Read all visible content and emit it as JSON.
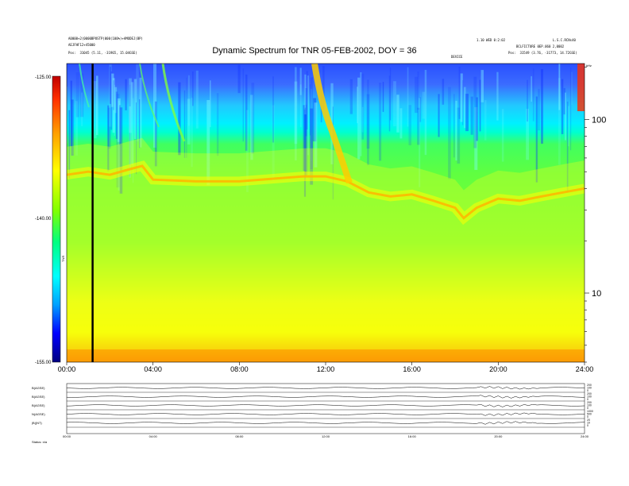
{
  "chart_data": {
    "type": "heatmap",
    "title": "Dynamic Spectrum for TNR 05-FEB-2002, DOY = 36",
    "colorbar": {
      "ticks": [
        "-125.00",
        "-140.00",
        "-155.00"
      ],
      "label": "TNR",
      "range": [
        -155,
        -125
      ],
      "colors": [
        "#000080",
        "#0000ff",
        "#00a0ff",
        "#00ffff",
        "#00ff80",
        "#80ff00",
        "#ffff00",
        "#ffa000",
        "#ff3000",
        "#c00000"
      ]
    },
    "x_ticks": [
      "00:00",
      "04:00",
      "08:00",
      "12:00",
      "16:00",
      "20:00",
      "24:00"
    ],
    "xlim_hours": [
      0,
      24
    ],
    "y_ticks": [
      "100",
      "10"
    ],
    "y_tick_values_khz": [
      100,
      10
    ],
    "ylim_khz": [
      4,
      210
    ],
    "y_scale": "log",
    "y_unit": "kHz",
    "marker_time_hours": 1.2,
    "emission_band": {
      "hours": [
        0,
        1,
        2,
        3,
        3.5,
        4,
        6,
        8,
        10,
        11,
        12,
        13,
        14,
        15,
        16,
        17,
        18,
        18.4,
        19,
        20,
        21,
        22,
        23,
        24
      ],
      "khz": [
        48,
        50,
        48,
        52,
        54,
        45,
        44,
        44,
        46,
        47,
        47,
        44,
        38,
        36,
        37,
        34,
        31,
        27,
        31,
        35,
        34,
        36,
        38,
        40
      ]
    },
    "top_left_header": [
      "A0000+2(0000BPOSTP)000(100%)+AMODEJ(BP)",
      "AEJFHF12+45000",
      "Pos:  31045 (5.11, -31965, 15.04GSE)"
    ],
    "top_right_header": [
      "1.10 WED 0:2:02",
      "L.S.C.RCNs40",
      "BCLFICTURE 0EP.060 2,0002",
      "Pos:  31549 (3.76, -31773, 14.72GSE)"
    ],
    "top_mid_label": "DEVICE",
    "corner_label": "kHz",
    "bottom_panels": {
      "rows": [
        {
          "label": "B(AGSE)",
          "right_ticks": [
            "200",
            "100",
            "0"
          ]
        },
        {
          "label": "B(AGSE)",
          "right_ticks": [
            "200",
            "100",
            "0"
          ]
        },
        {
          "label": "B(AGSE)",
          "right_ticks": [
            "200",
            "100",
            "0"
          ]
        },
        {
          "label": "N(AGSE)",
          "right_ticks": [
            "1000",
            "500",
            "0"
          ]
        },
        {
          "label": "|B|(NT)",
          "right_ticks": [
            "20",
            "10",
            "0"
          ]
        }
      ],
      "x_ticks": [
        "00:00",
        "04:00",
        "08:00",
        "12:00",
        "16:00",
        "20:00",
        "24:00"
      ],
      "footer": "Status:  n/a"
    }
  }
}
